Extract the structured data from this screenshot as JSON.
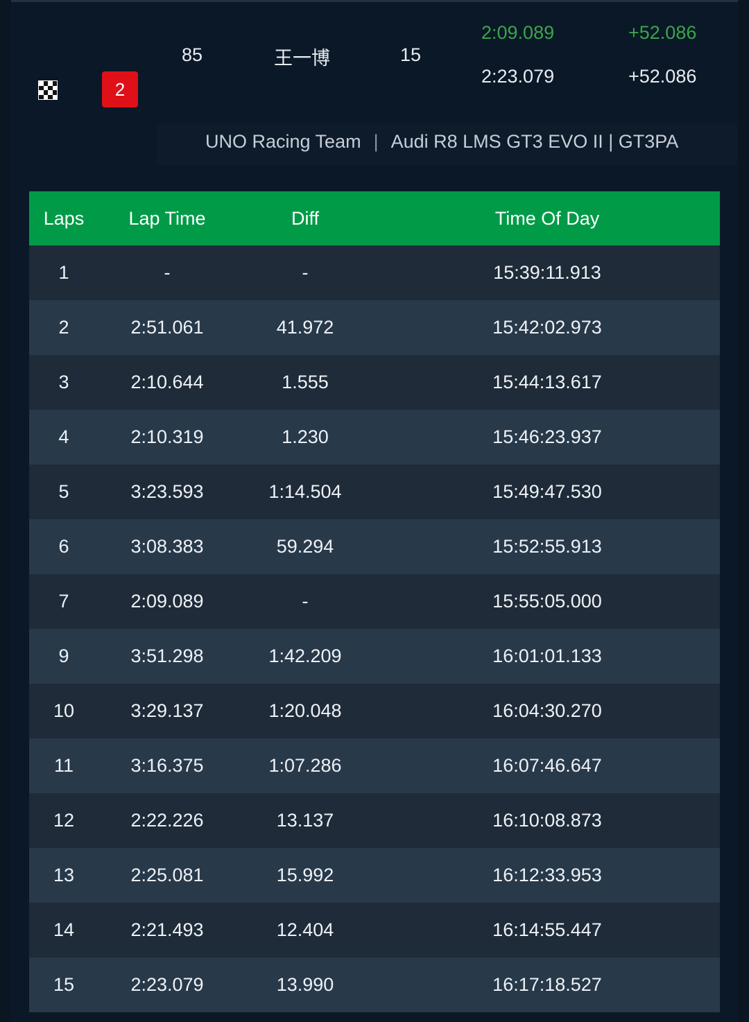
{
  "driver": {
    "position": "2",
    "car_number": "85",
    "name": "王一博",
    "laps": "15",
    "best_lap": "2:09.089",
    "best_gap": "+52.086",
    "last_lap": "2:23.079",
    "last_gap": "+52.086",
    "team": "UNO Racing Team",
    "separator": "|",
    "car_class": "Audi R8 LMS GT3 EVO II | GT3PA"
  },
  "colors": {
    "header_green": "#019b48",
    "best_green": "#3aa54a",
    "position_red": "#e01018"
  },
  "table": {
    "headers": [
      "Laps",
      "Lap Time",
      "Diff",
      "Time Of Day"
    ],
    "rows": [
      {
        "lap": "1",
        "time": "-",
        "diff": "-",
        "tod": "15:39:11.913"
      },
      {
        "lap": "2",
        "time": "2:51.061",
        "diff": "41.972",
        "tod": "15:42:02.973"
      },
      {
        "lap": "3",
        "time": "2:10.644",
        "diff": "1.555",
        "tod": "15:44:13.617"
      },
      {
        "lap": "4",
        "time": "2:10.319",
        "diff": "1.230",
        "tod": "15:46:23.937"
      },
      {
        "lap": "5",
        "time": "3:23.593",
        "diff": "1:14.504",
        "tod": "15:49:47.530"
      },
      {
        "lap": "6",
        "time": "3:08.383",
        "diff": "59.294",
        "tod": "15:52:55.913"
      },
      {
        "lap": "7",
        "time": "2:09.089",
        "diff": "-",
        "tod": "15:55:05.000"
      },
      {
        "lap": "9",
        "time": "3:51.298",
        "diff": "1:42.209",
        "tod": "16:01:01.133"
      },
      {
        "lap": "10",
        "time": "3:29.137",
        "diff": "1:20.048",
        "tod": "16:04:30.270"
      },
      {
        "lap": "11",
        "time": "3:16.375",
        "diff": "1:07.286",
        "tod": "16:07:46.647"
      },
      {
        "lap": "12",
        "time": "2:22.226",
        "diff": "13.137",
        "tod": "16:10:08.873"
      },
      {
        "lap": "13",
        "time": "2:25.081",
        "diff": "15.992",
        "tod": "16:12:33.953"
      },
      {
        "lap": "14",
        "time": "2:21.493",
        "diff": "12.404",
        "tod": "16:14:55.447"
      },
      {
        "lap": "15",
        "time": "2:23.079",
        "diff": "13.990",
        "tod": "16:17:18.527"
      }
    ]
  }
}
